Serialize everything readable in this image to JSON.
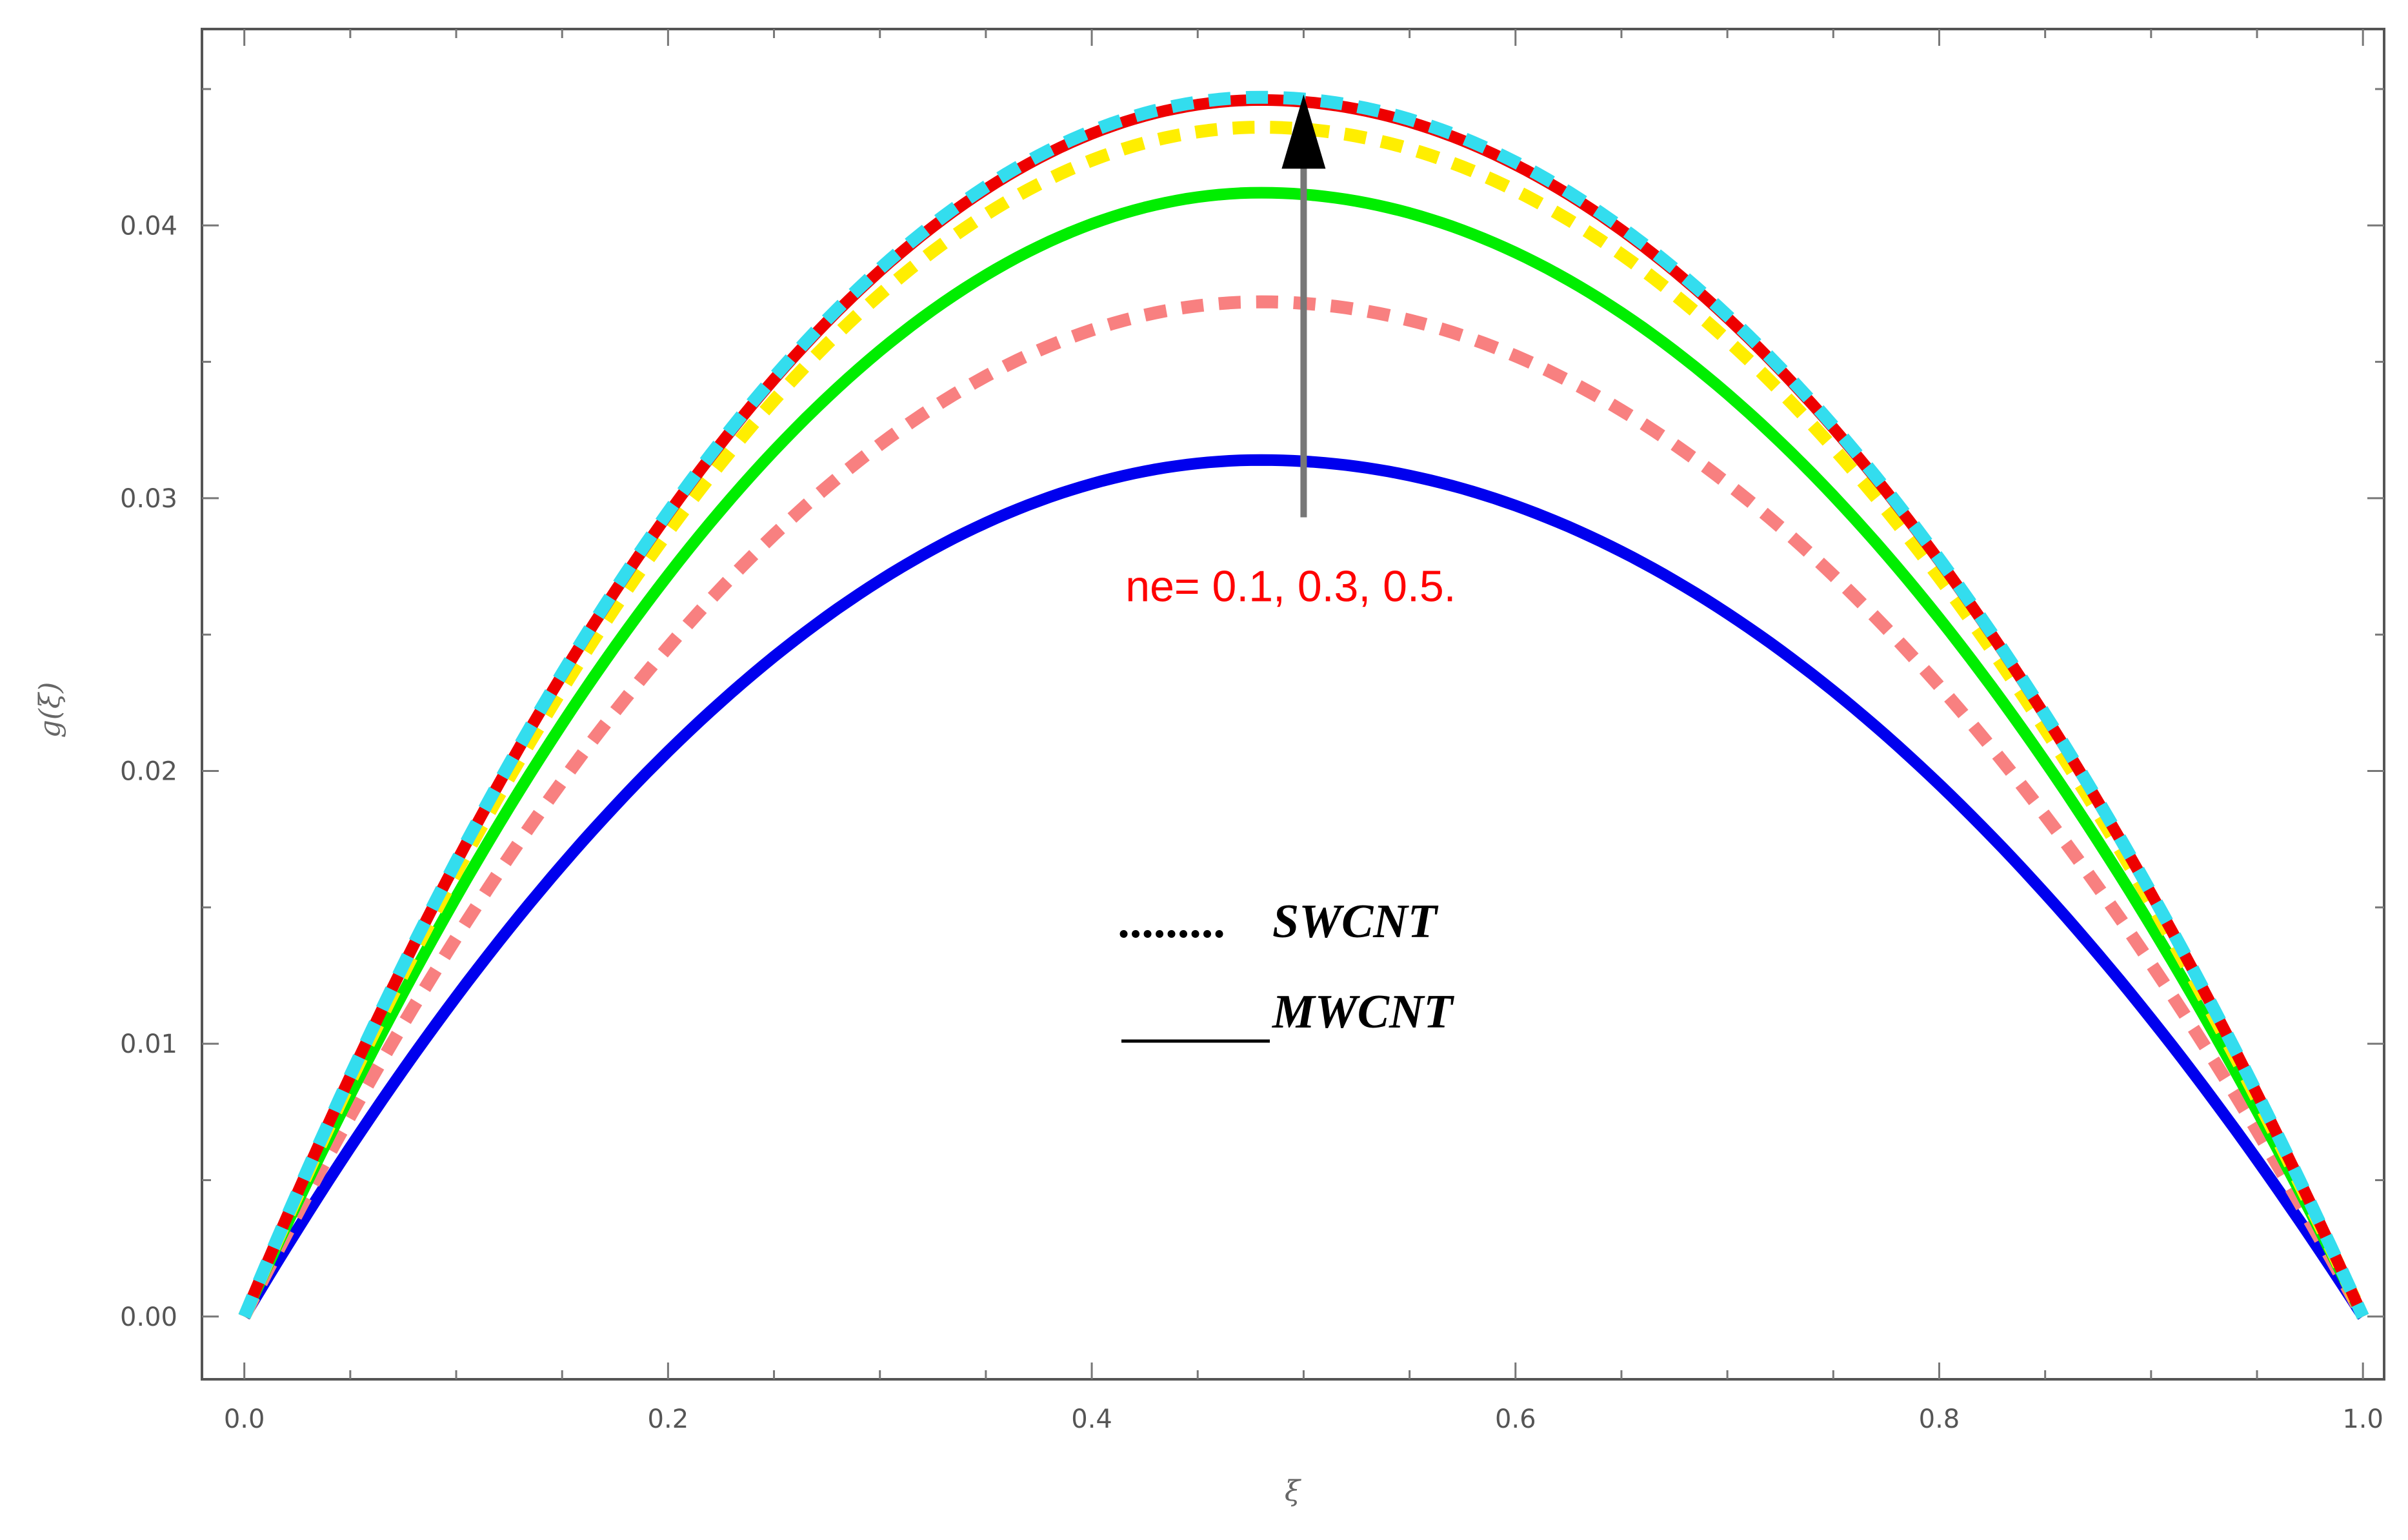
{
  "chart_data": {
    "type": "line",
    "title": "",
    "xlabel": "ξ",
    "ylabel": "g(ξ)",
    "xlim": [
      -0.02,
      1.01
    ],
    "ylim": [
      -0.0023,
      0.0472
    ],
    "x_ticks": [
      0.0,
      0.2,
      0.4,
      0.6,
      0.8,
      1.0
    ],
    "x_tick_labels": [
      "0.0",
      "0.2",
      "0.4",
      "0.6",
      "0.8",
      "1.0"
    ],
    "y_ticks": [
      0.0,
      0.01,
      0.02,
      0.03,
      0.04
    ],
    "y_tick_labels": [
      "0.00",
      "0.01",
      "0.02",
      "0.03",
      "0.04"
    ],
    "grid": false,
    "series": [
      {
        "name": "MWCNT, ne=0.1",
        "style": "solid",
        "color": "#0000ee",
        "peak_x": 0.48,
        "peak_y": 0.0314
      },
      {
        "name": "SWCNT, ne=0.1",
        "style": "dashed",
        "color": "#f88080",
        "peak_x": 0.48,
        "peak_y": 0.0372
      },
      {
        "name": "MWCNT, ne=0.3",
        "style": "solid",
        "color": "#00ee00",
        "peak_x": 0.48,
        "peak_y": 0.0412
      },
      {
        "name": "SWCNT, ne=0.3",
        "style": "dashed",
        "color": "#ffee00",
        "peak_x": 0.48,
        "peak_y": 0.0436
      },
      {
        "name": "MWCNT, ne=0.5",
        "style": "solid",
        "color": "#ee0000",
        "peak_x": 0.48,
        "peak_y": 0.0446
      },
      {
        "name": "SWCNT, ne=0.5",
        "style": "dashed",
        "color": "#33ddee",
        "peak_x": 0.48,
        "peak_y": 0.0447
      }
    ],
    "annotations": {
      "arrow_label": "ne= 0.1, 0.3, 0.5.",
      "arrow_x": 0.5,
      "arrow_from_y": 0.0293,
      "arrow_to_y": 0.0448
    },
    "legend": {
      "placement": "center",
      "entries": [
        {
          "marker": ".........",
          "label": "SWCNT"
        },
        {
          "marker": "______",
          "label": "MWCNT"
        }
      ]
    }
  }
}
